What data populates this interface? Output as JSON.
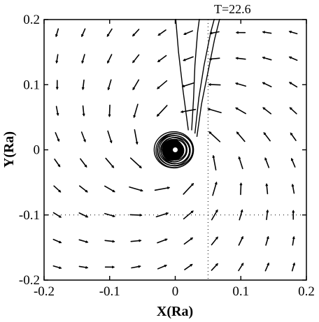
{
  "chart_data": {
    "type": "quiver",
    "annotation": "T=22.6",
    "xlabel": "X(Ra)",
    "ylabel": "Y(Ra)",
    "xlim": [
      -0.2,
      0.2
    ],
    "ylim": [
      -0.2,
      0.2
    ],
    "xticks": [
      {
        "value": -0.2,
        "label": "-0.2"
      },
      {
        "value": -0.1,
        "label": "-0.1"
      },
      {
        "value": 0,
        "label": "0"
      },
      {
        "value": 0.1,
        "label": "0.1"
      },
      {
        "value": 0.2,
        "label": "0.2"
      }
    ],
    "yticks": [
      {
        "value": 0.2,
        "label": "0.2"
      },
      {
        "value": 0.1,
        "label": "0.1"
      },
      {
        "value": 0,
        "label": "0"
      },
      {
        "value": -0.1,
        "label": "-0.1"
      },
      {
        "value": -0.2,
        "label": "-0.2"
      }
    ],
    "grid": false,
    "dotted_guides": {
      "x": 0.05,
      "y": -0.1
    },
    "colors": {
      "ink": "#000000",
      "background": "#ffffff"
    },
    "central_object": {
      "x": 0,
      "y": 0,
      "radius": 0.03
    },
    "vector_field": {
      "center": [
        0,
        0
      ],
      "grid_step": 0.04,
      "max_arrow_length": 0.022,
      "rotation": "counterclockwise",
      "inflow_fraction": 0.55
    },
    "stream": [
      {
        "name": "",
        "points": [
          [
            0.025,
            0.03
          ],
          [
            0.028,
            0.08
          ],
          [
            0.03,
            0.13
          ],
          [
            0.034,
            0.18
          ],
          [
            0.038,
            0.21
          ]
        ]
      },
      {
        "name": "",
        "points": [
          [
            0.03,
            0.025
          ],
          [
            0.036,
            0.08
          ],
          [
            0.044,
            0.13
          ],
          [
            0.054,
            0.18
          ],
          [
            0.062,
            0.21
          ]
        ]
      },
      {
        "name": "",
        "points": [
          [
            0.033,
            0.02
          ],
          [
            0.04,
            0.07
          ],
          [
            0.05,
            0.12
          ],
          [
            0.06,
            0.17
          ],
          [
            0.07,
            0.21
          ]
        ]
      },
      {
        "name": "",
        "points": [
          [
            0.02,
            0.03
          ],
          [
            0.012,
            0.09
          ],
          [
            0.005,
            0.15
          ],
          [
            0.0,
            0.21
          ]
        ]
      }
    ]
  }
}
